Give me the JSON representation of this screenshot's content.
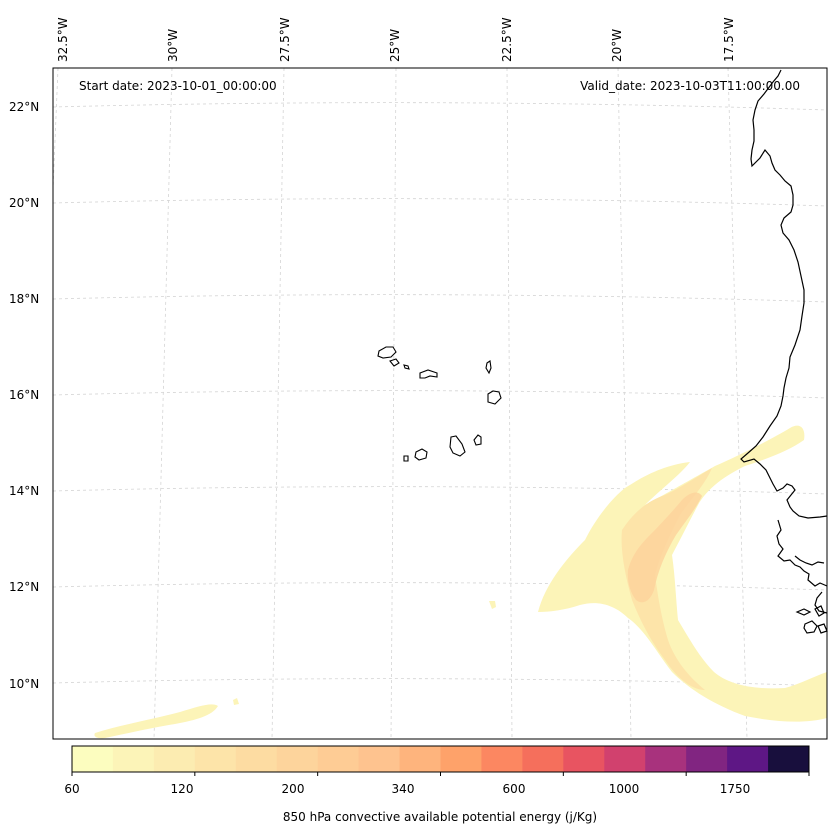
{
  "map": {
    "start_date": "Start date: 2023-10-01_00:00:00",
    "valid_date": "Valid_date: 2023-10-03T11:00:00.00",
    "longitude_labels": [
      "32.5°W",
      "30°W",
      "27.5°W",
      "25°W",
      "22.5°W",
      "20°W",
      "17.5°W"
    ],
    "latitude_labels": [
      "22°N",
      "20°N",
      "18°N",
      "16°N",
      "14°N",
      "12°N",
      "10°N"
    ],
    "field_name": "850 hPa convective available potential energy",
    "region": "Cabo Verde islands and West African coast",
    "coastline_color": "#000000",
    "gridline_color": "#cccccc"
  },
  "colorbar": {
    "label": "850 hPa convective available potential energy (j/Kg)",
    "tick_labels": [
      "60",
      "120",
      "200",
      "340",
      "600",
      "1000",
      "1750"
    ],
    "colors": [
      "#fcfdbf",
      "#fcf4b8",
      "#fcecb1",
      "#fde4a9",
      "#fddca2",
      "#fdd49c",
      "#fecc95",
      "#fec38f",
      "#feb47d",
      "#fea26a",
      "#fc8761",
      "#f56f5c",
      "#e85461",
      "#d1416e",
      "#a8327d",
      "#812581",
      "#5e1785",
      "#180f3d"
    ]
  }
}
